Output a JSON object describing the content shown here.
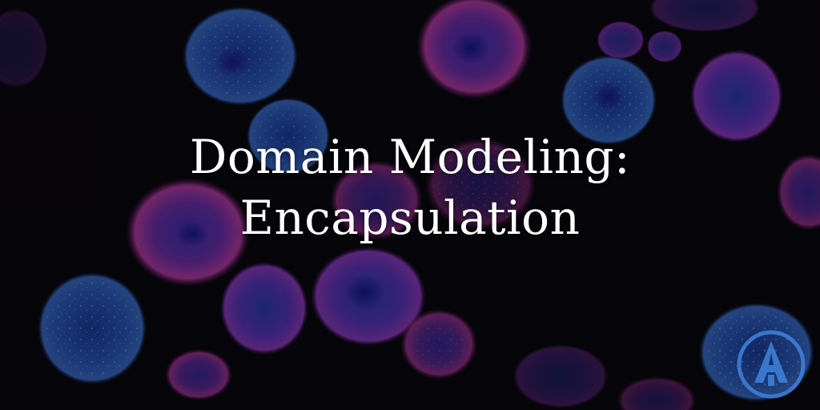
{
  "banner": {
    "title_line1": "Domain Modeling:",
    "title_line2": "Encapsulation",
    "logo_letter": "A"
  },
  "colors": {
    "background": "#0a0810",
    "cell_magenta": "#a0329a",
    "cell_violet": "#6a35b8",
    "cell_blue": "#2a3aa8",
    "cell_speckle": "#39d0a0",
    "logo_blue": "#3d7fd6",
    "title": "#ffffff"
  },
  "icons": {
    "logo": "a-logo-icon"
  }
}
